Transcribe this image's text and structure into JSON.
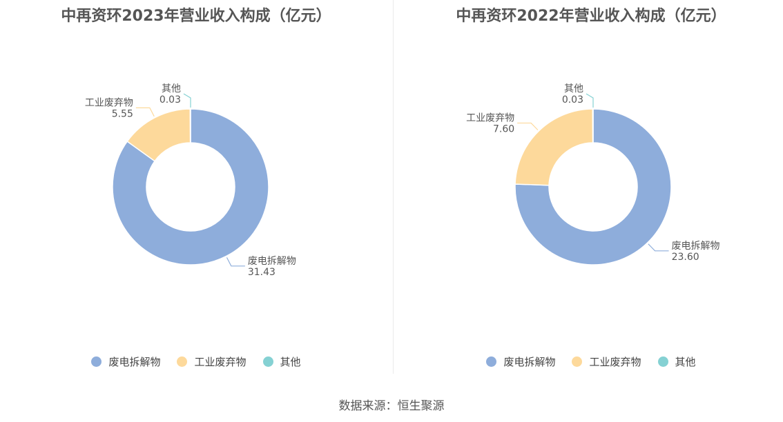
{
  "chart_data": [
    {
      "type": "pie",
      "title": "中再资环2023年营业收入构成（亿元）",
      "slices": [
        {
          "label": "废电拆解物",
          "value": 31.43,
          "value_text": "31.43"
        },
        {
          "label": "工业废弃物",
          "value": 5.55,
          "value_text": "5.55"
        },
        {
          "label": "其他",
          "value": 0.03,
          "value_text": "0.03"
        }
      ],
      "legend_position": "bottom"
    },
    {
      "type": "pie",
      "title": "中再资环2022年营业收入构成（亿元）",
      "slices": [
        {
          "label": "废电拆解物",
          "value": 23.6,
          "value_text": "23.60"
        },
        {
          "label": "工业废弃物",
          "value": 7.6,
          "value_text": "7.60"
        },
        {
          "label": "其他",
          "value": 0.03,
          "value_text": "0.03"
        }
      ],
      "legend_position": "bottom"
    }
  ],
  "colors": {
    "废电拆解物": "#8eaddb",
    "工业废弃物": "#fdd99b",
    "其他": "#85d1d3"
  },
  "legend": {
    "items": [
      "废电拆解物",
      "工业废弃物",
      "其他"
    ]
  },
  "footer": {
    "source": "数据来源：恒生聚源"
  }
}
